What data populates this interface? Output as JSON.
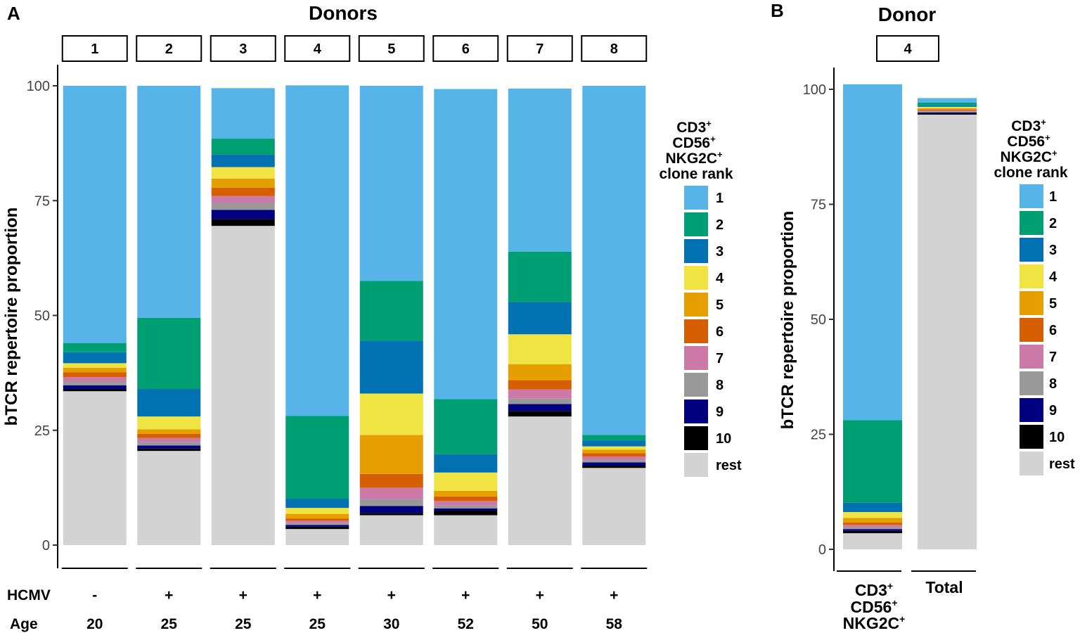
{
  "chart_data": [
    {
      "panel": "A",
      "type": "bar",
      "stacked": true,
      "title": "Donors",
      "ylabel": "bTCR repertoire proportion",
      "ylim": [
        0,
        100
      ],
      "yticks": [
        0,
        25,
        50,
        75,
        100
      ],
      "categories": [
        "1",
        "2",
        "3",
        "4",
        "5",
        "6",
        "7",
        "8"
      ],
      "stack_order_bottom_to_top": [
        "rest",
        "10",
        "9",
        "8",
        "7",
        "6",
        "5",
        "4",
        "3",
        "2",
        "1"
      ],
      "series": [
        {
          "name": "rest",
          "values": [
            33.5,
            20.5,
            69.5,
            3.5,
            6.5,
            6.5,
            28,
            16.8
          ]
        },
        {
          "name": "10",
          "values": [
            0.5,
            0.5,
            1.5,
            0.5,
            0.5,
            1,
            1.2,
            0.5
          ]
        },
        {
          "name": "9",
          "values": [
            0.8,
            0.7,
            2,
            0.4,
            1.5,
            0.5,
            1.5,
            0.7
          ]
        },
        {
          "name": "8",
          "values": [
            0.8,
            0.8,
            1.5,
            0.4,
            1.5,
            0.6,
            1.2,
            0.5
          ]
        },
        {
          "name": "7",
          "values": [
            1,
            0.8,
            1.5,
            0.5,
            2.5,
            1,
            2,
            0.8
          ]
        },
        {
          "name": "6",
          "values": [
            1,
            0.9,
            1.8,
            0.5,
            3,
            1,
            2,
            0.7
          ]
        },
        {
          "name": "5",
          "values": [
            1,
            1,
            2,
            1,
            8.5,
            1.2,
            3.5,
            0.8
          ]
        },
        {
          "name": "4",
          "values": [
            1,
            2.8,
            2.5,
            1.3,
            9,
            4,
            6.5,
            0.7
          ]
        },
        {
          "name": "3",
          "values": [
            2.4,
            6,
            2.7,
            2,
            11.5,
            4,
            7,
            1.3
          ]
        },
        {
          "name": "2",
          "values": [
            2,
            15.5,
            3.5,
            18,
            13,
            12,
            11,
            1.2
          ]
        },
        {
          "name": "1",
          "values": [
            56,
            50.5,
            11,
            72,
            42.5,
            67.5,
            35.5,
            76
          ]
        }
      ],
      "donor_strip_labels": [
        "1",
        "2",
        "3",
        "4",
        "5",
        "6",
        "7",
        "8"
      ],
      "row_labels": {
        "hcmv": "HCMV",
        "age": "Age"
      },
      "hcmv": [
        "-",
        "+",
        "+",
        "+",
        "+",
        "+",
        "+",
        "+"
      ],
      "age": [
        "20",
        "25",
        "25",
        "25",
        "30",
        "52",
        "50",
        "58"
      ]
    },
    {
      "panel": "B",
      "type": "bar",
      "stacked": true,
      "title": "Donor",
      "ylabel": "bTCR repertoire proportion",
      "ylim": [
        0,
        100
      ],
      "yticks": [
        0,
        25,
        50,
        75,
        100
      ],
      "strip_label": "4",
      "categories": [
        "CD3+CD56+NKG2C+",
        "Total"
      ],
      "series": [
        {
          "name": "rest",
          "values": [
            3.5,
            94.5
          ]
        },
        {
          "name": "10",
          "values": [
            0.5,
            0.3
          ]
        },
        {
          "name": "9",
          "values": [
            0.4,
            0.2
          ]
        },
        {
          "name": "8",
          "values": [
            0.4,
            0.2
          ]
        },
        {
          "name": "7",
          "values": [
            0.5,
            0.2
          ]
        },
        {
          "name": "6",
          "values": [
            0.5,
            0.2
          ]
        },
        {
          "name": "5",
          "values": [
            1,
            0.3
          ]
        },
        {
          "name": "4",
          "values": [
            1.3,
            0.3
          ]
        },
        {
          "name": "3",
          "values": [
            2,
            0.3
          ]
        },
        {
          "name": "2",
          "values": [
            18,
            0.6
          ]
        },
        {
          "name": "1",
          "values": [
            73,
            1
          ]
        }
      ]
    }
  ],
  "panel_labels": {
    "a": "A",
    "b": "B"
  },
  "legend": {
    "title_parts": [
      {
        "base": "CD3",
        "sup": "+"
      },
      {
        "base": "CD56",
        "sup": "+"
      },
      {
        "base": "NKG2C",
        "sup": "+"
      },
      {
        "base": "clone rank",
        "sup": ""
      }
    ],
    "items": [
      {
        "label": "1",
        "color": "#56B4E9"
      },
      {
        "label": "2",
        "color": "#009E73"
      },
      {
        "label": "3",
        "color": "#0072B2"
      },
      {
        "label": "4",
        "color": "#F0E442"
      },
      {
        "label": "5",
        "color": "#E69F00"
      },
      {
        "label": "6",
        "color": "#D55E00"
      },
      {
        "label": "7",
        "color": "#CC79A7"
      },
      {
        "label": "8",
        "color": "#999999"
      },
      {
        "label": "9",
        "color": "#000080"
      },
      {
        "label": "10",
        "color": "#000000"
      },
      {
        "label": "rest",
        "color": "#D3D3D3"
      }
    ]
  },
  "panelB_xlabels": {
    "cd3": {
      "base": "CD3",
      "sup": "+"
    },
    "cd56": {
      "base": "CD56",
      "sup": "+"
    },
    "nkg2c": {
      "base": "NKG2C",
      "sup": "+"
    },
    "total": "Total"
  }
}
